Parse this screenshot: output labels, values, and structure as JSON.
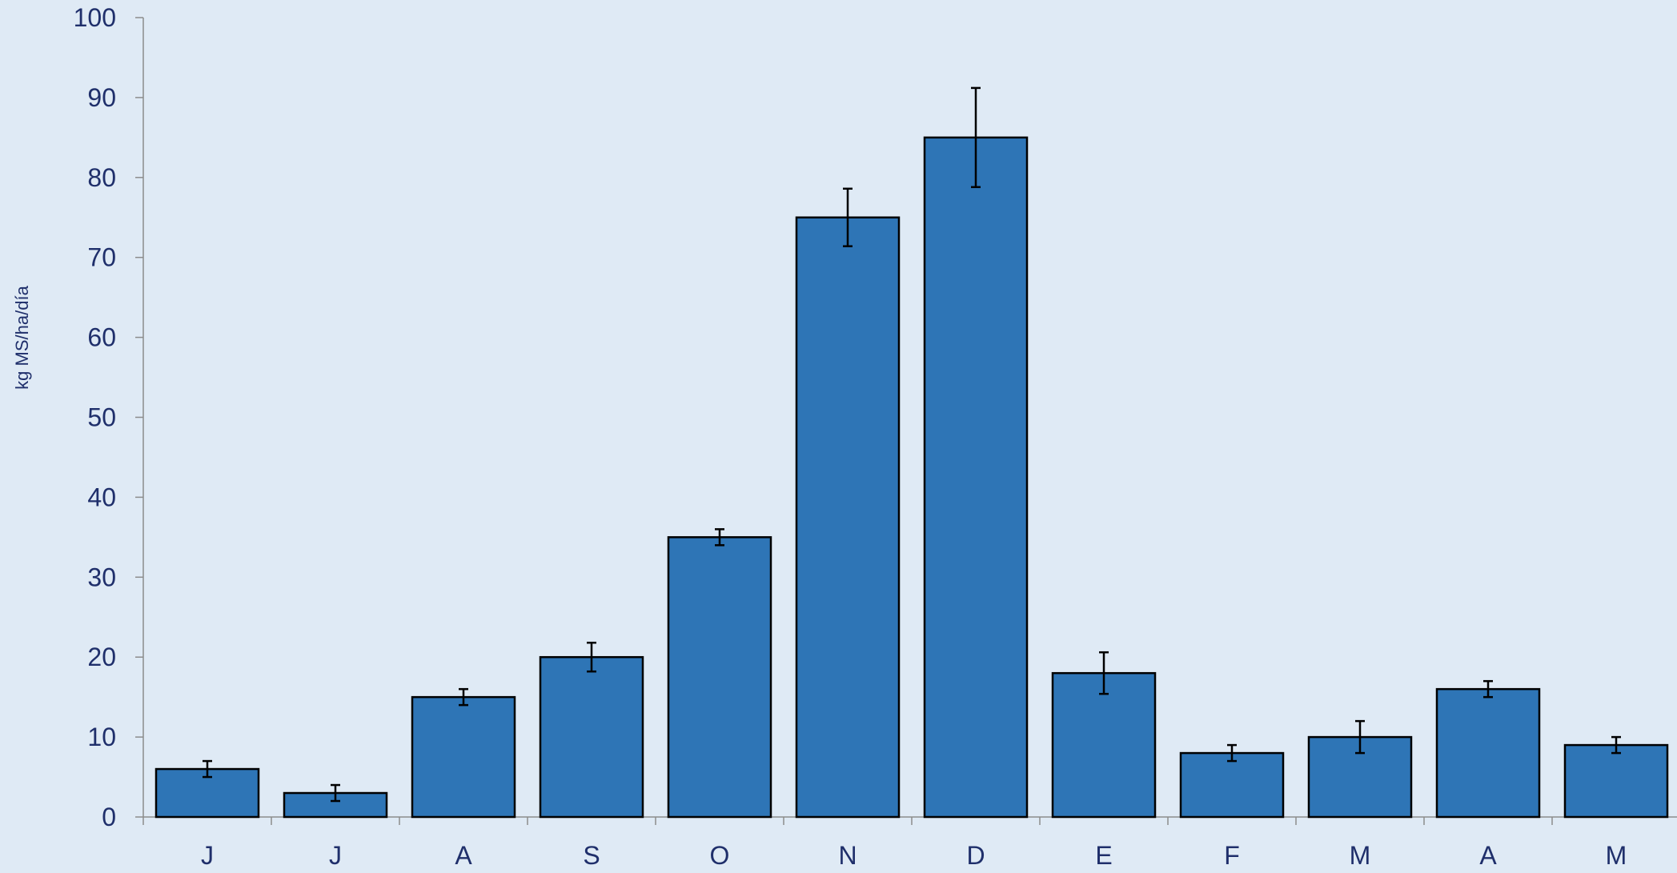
{
  "chart_data": {
    "type": "bar",
    "title": "",
    "xlabel": "",
    "ylabel": "kg MS/ha/día",
    "ylim": [
      0,
      100
    ],
    "yticks": [
      0,
      10,
      20,
      30,
      40,
      50,
      60,
      70,
      80,
      90,
      100
    ],
    "ytick_labels": [
      "0",
      "10",
      "20",
      "30",
      "40",
      "50",
      "60",
      "70",
      "80",
      "90",
      "100"
    ],
    "categories": [
      "J",
      "J",
      "A",
      "S",
      "O",
      "N",
      "D",
      "E",
      "F",
      "M",
      "A",
      "M"
    ],
    "values": [
      6,
      3,
      15,
      20,
      35,
      75,
      85,
      18,
      8,
      10,
      16,
      9
    ],
    "error": [
      1,
      1,
      1,
      1.8,
      1,
      3.6,
      6.2,
      2.6,
      1,
      2,
      1,
      1
    ],
    "grid": false,
    "legend": "none",
    "colors": {
      "background": "#dfeaf5",
      "bar_fill": "#2e75b6",
      "bar_stroke": "#000000",
      "axis": "#8c8c8c",
      "text": "#1f2f6b",
      "error_bar": "#000000"
    }
  }
}
